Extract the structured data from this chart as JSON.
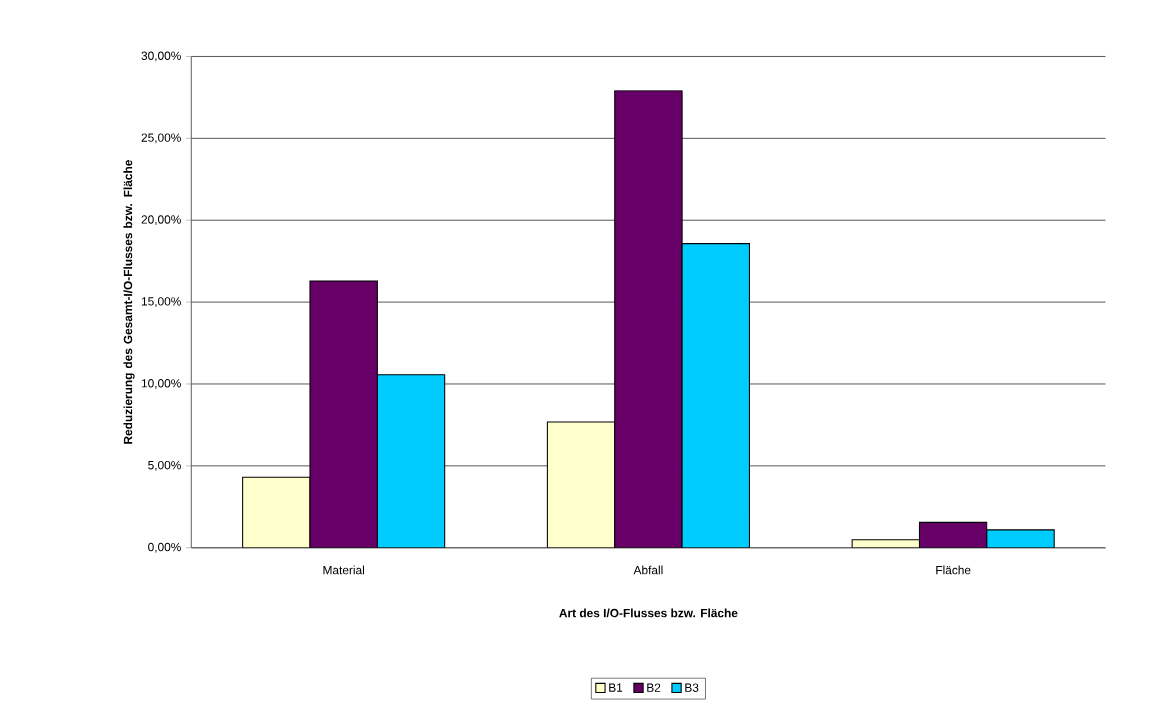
{
  "chart_data": {
    "type": "bar",
    "xlabel": "Art des I/O-Flusses bzw. Fläche",
    "ylabel": "Reduzierung des Gesamt-I/O-Flusses bzw. Fläche",
    "categories": [
      "Material",
      "Abfall",
      "Fläche"
    ],
    "series": [
      {
        "name": "B1",
        "color": "#ffffcc",
        "values": [
          4.31,
          7.68,
          0.49
        ]
      },
      {
        "name": "B2",
        "color": "#660066",
        "values": [
          16.29,
          27.9,
          1.55
        ]
      },
      {
        "name": "B3",
        "color": "#00ccff",
        "values": [
          10.56,
          18.57,
          1.09
        ]
      }
    ],
    "ylim": [
      0,
      30
    ],
    "yticks": [
      {
        "value": 0,
        "label": "0,00%"
      },
      {
        "value": 5,
        "label": "5,00%"
      },
      {
        "value": 10,
        "label": "10,00%"
      },
      {
        "value": 15,
        "label": "15,00%"
      },
      {
        "value": 20,
        "label": "20,00%"
      },
      {
        "value": 25,
        "label": "25,00%"
      },
      {
        "value": 30,
        "label": "30,00%"
      }
    ],
    "grid": "y",
    "legend": "bottom"
  }
}
